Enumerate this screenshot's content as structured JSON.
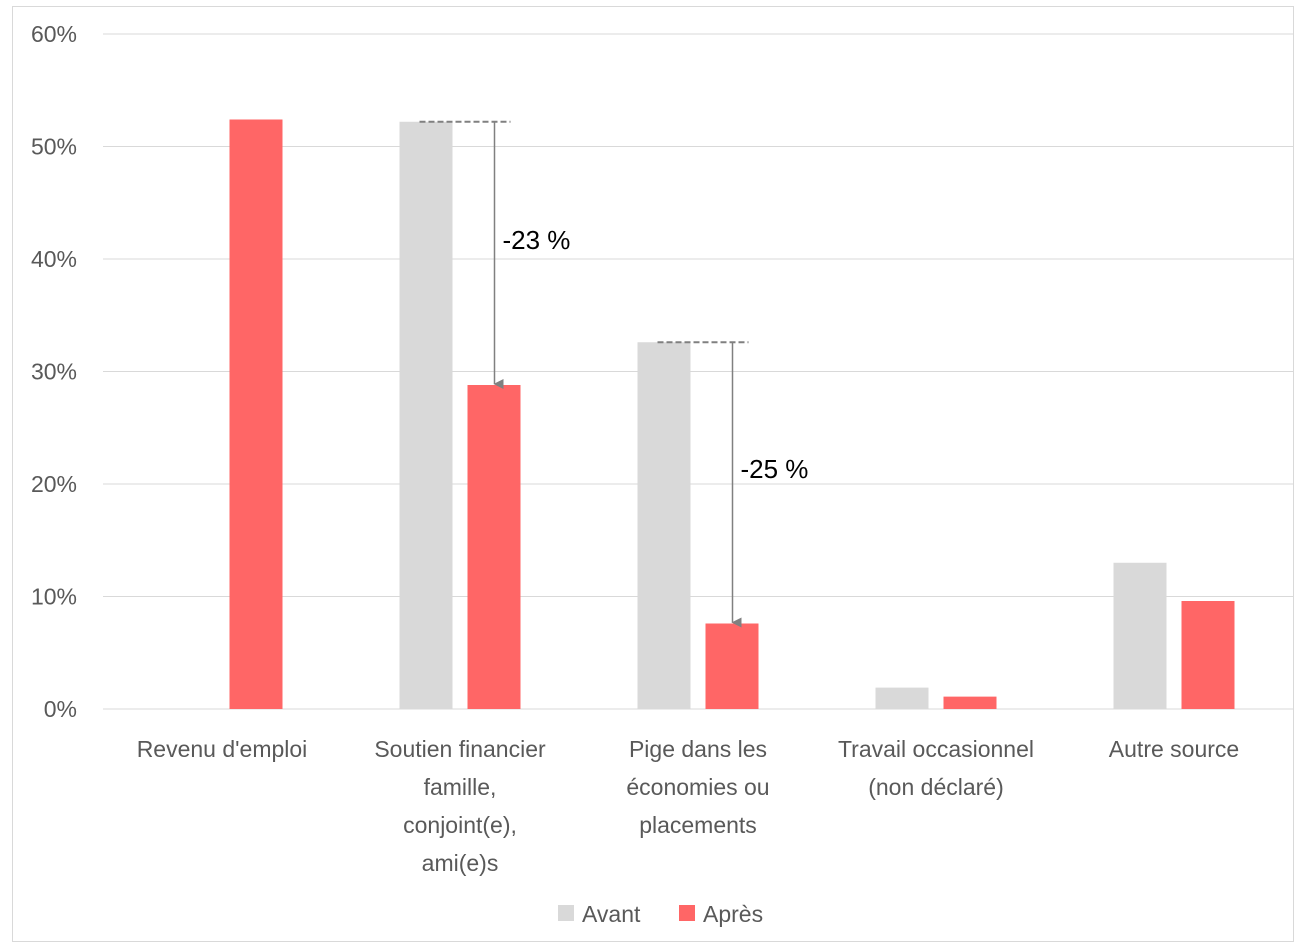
{
  "chart_data": {
    "type": "bar",
    "categories": [
      [
        "Revenu d'emploi"
      ],
      [
        "Soutien financier",
        "famille,",
        "conjoint(e),",
        "ami(e)s"
      ],
      [
        "Pige dans les",
        "économies ou",
        "placements"
      ],
      [
        "Travail occasionnel",
        "(non déclaré)"
      ],
      [
        "Autre source"
      ]
    ],
    "series": [
      {
        "name": "Avant",
        "color": "#d9d9d9",
        "values": [
          0,
          52.2,
          32.6,
          1.9,
          13.0
        ]
      },
      {
        "name": "Après",
        "color": "#ff6666",
        "values": [
          52.4,
          28.8,
          7.6,
          1.1,
          9.6
        ]
      }
    ],
    "ylim": [
      0,
      60
    ],
    "yticks": [
      0,
      10,
      20,
      30,
      40,
      50,
      60
    ],
    "ytick_labels": [
      "0%",
      "10%",
      "20%",
      "30%",
      "40%",
      "50%",
      "60%"
    ],
    "grid": true,
    "legend_position": "bottom",
    "annotations": [
      {
        "category_index": 1,
        "text": "-23 %"
      },
      {
        "category_index": 2,
        "text": "-25 %"
      }
    ]
  }
}
